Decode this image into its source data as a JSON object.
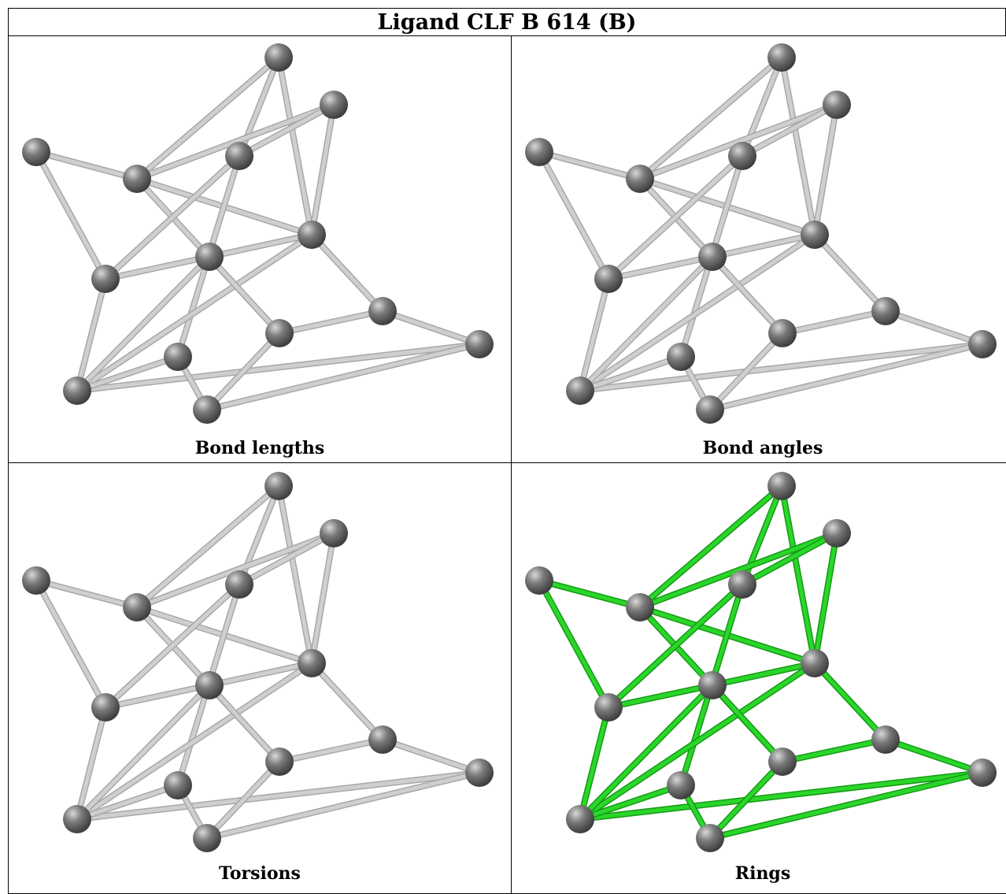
{
  "title": "Ligand CLF B 614 (B)",
  "panels": [
    {
      "caption": "Bond lengths",
      "bond_color": "#cfcfcf",
      "bond_edge": "#a8a8a8"
    },
    {
      "caption": "Bond angles",
      "bond_color": "#cfcfcf",
      "bond_edge": "#a8a8a8"
    },
    {
      "caption": "Torsions",
      "bond_color": "#cfcfcf",
      "bond_edge": "#a8a8a8"
    },
    {
      "caption": "Rings",
      "bond_color": "#2ad62a",
      "bond_edge": "#159a15"
    }
  ],
  "atom_color": "#7a7a7a"
}
